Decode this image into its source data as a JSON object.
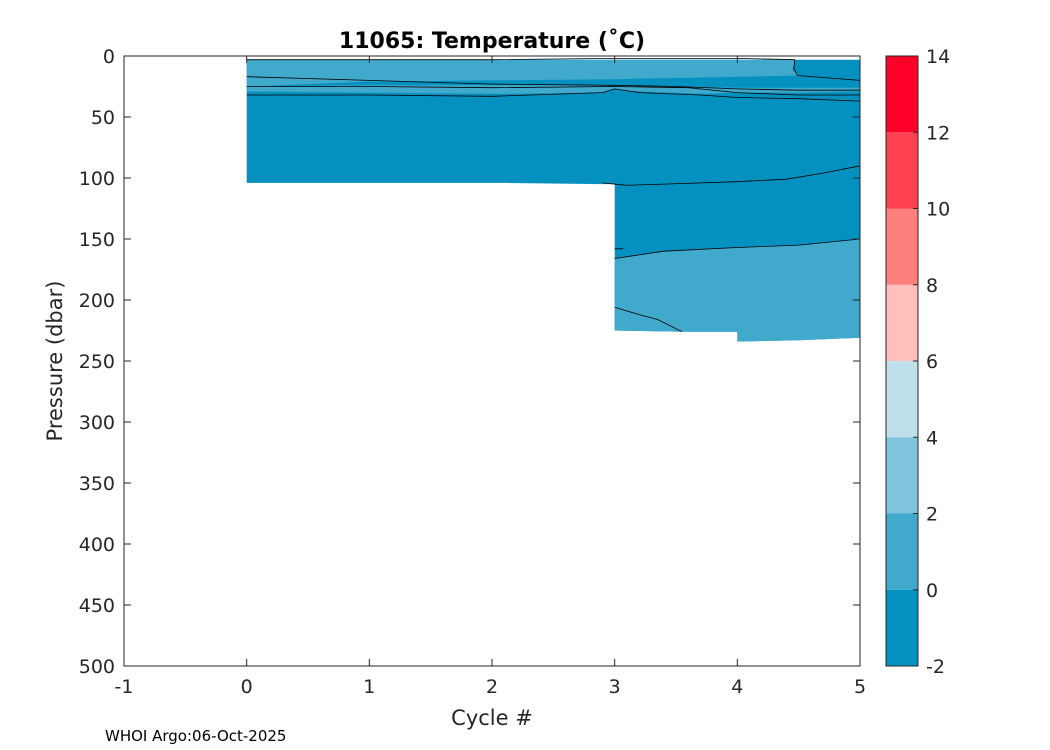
{
  "chart_data": {
    "type": "filled-contour",
    "title": "11065:  Temperature (˚C)",
    "xlabel": "Cycle #",
    "ylabel": "Pressure (dbar)",
    "xlim": [
      -1,
      5
    ],
    "ylim": [
      0,
      500
    ],
    "y_reversed": true,
    "xticks": [
      -1,
      0,
      1,
      2,
      3,
      4,
      5
    ],
    "yticks": [
      0,
      50,
      100,
      150,
      200,
      250,
      300,
      350,
      400,
      450,
      500
    ],
    "colorbar": {
      "ticks": [
        -2,
        0,
        2,
        4,
        6,
        8,
        10,
        12,
        14
      ],
      "levels": [
        {
          "from": -2,
          "to": 0,
          "color": "#0591bf"
        },
        {
          "from": 0,
          "to": 2,
          "color": "#40a9cc"
        },
        {
          "from": 2,
          "to": 4,
          "color": "#80c3dd"
        },
        {
          "from": 4,
          "to": 6,
          "color": "#bfe0ea"
        },
        {
          "from": 6,
          "to": 8,
          "color": "#ffbfbb"
        },
        {
          "from": 8,
          "to": 10,
          "color": "#fe807d"
        },
        {
          "from": 10,
          "to": 12,
          "color": "#fe4050"
        },
        {
          "from": 12,
          "to": 14,
          "color": "#ff0028"
        }
      ]
    },
    "regions": [
      {
        "name": "deep-cold-layer",
        "level": "-2 to 0",
        "polygon": [
          [
            0,
            3
          ],
          [
            0,
            104
          ],
          [
            2.1,
            104
          ],
          [
            2.9,
            105
          ],
          [
            3,
            105
          ],
          [
            3,
            225
          ],
          [
            3.55,
            226
          ],
          [
            4,
            226
          ],
          [
            4,
            234
          ],
          [
            4.5,
            233
          ],
          [
            5,
            231
          ],
          [
            5,
            3
          ]
        ]
      },
      {
        "name": "lower-warm-layer",
        "level": "0 to 2",
        "polygon": [
          [
            3,
            166
          ],
          [
            3.4,
            160
          ],
          [
            4,
            157
          ],
          [
            4.5,
            155
          ],
          [
            5,
            150
          ],
          [
            5,
            231
          ],
          [
            4.5,
            233
          ],
          [
            4,
            234
          ],
          [
            4,
            226
          ],
          [
            3.55,
            226
          ],
          [
            3,
            225
          ]
        ]
      },
      {
        "name": "surface-warm-layer",
        "level": "0 to 2",
        "polygon": [
          [
            0,
            3
          ],
          [
            0,
            25
          ],
          [
            1,
            21
          ],
          [
            2,
            20
          ],
          [
            3,
            19
          ],
          [
            3.5,
            18
          ],
          [
            4,
            17
          ],
          [
            4.5,
            16
          ],
          [
            4.45,
            12
          ],
          [
            4.47,
            3
          ]
        ]
      },
      {
        "name": "sub-surface-warm-band",
        "level": "0 to 2",
        "polygon": [
          [
            0,
            29
          ],
          [
            1,
            30
          ],
          [
            2,
            31
          ],
          [
            2.9,
            30
          ],
          [
            3,
            27
          ],
          [
            3.2,
            29
          ],
          [
            3.7,
            31
          ],
          [
            4,
            30
          ],
          [
            4.5,
            30
          ],
          [
            5,
            29
          ],
          [
            5,
            26
          ],
          [
            4.5,
            26
          ],
          [
            4,
            26
          ],
          [
            3.5,
            25
          ],
          [
            3,
            24
          ],
          [
            2,
            24
          ],
          [
            1,
            24
          ],
          [
            0,
            25
          ]
        ]
      }
    ],
    "contour_lines": [
      [
        [
          0,
          3
        ],
        [
          1,
          3
        ],
        [
          2,
          3
        ],
        [
          3,
          2
        ],
        [
          4,
          2
        ],
        [
          4.47,
          3
        ]
      ],
      [
        [
          0,
          17
        ],
        [
          1,
          20
        ],
        [
          2,
          23
        ],
        [
          3,
          24
        ],
        [
          3.5,
          25
        ],
        [
          4,
          27
        ],
        [
          4.5,
          28
        ],
        [
          5,
          28
        ]
      ],
      [
        [
          0,
          25
        ],
        [
          1,
          25
        ],
        [
          2,
          26
        ],
        [
          3,
          25
        ],
        [
          3.6,
          26
        ],
        [
          4,
          30
        ],
        [
          4.5,
          32
        ],
        [
          5,
          32
        ]
      ],
      [
        [
          0,
          32
        ],
        [
          1,
          32
        ],
        [
          2,
          33
        ],
        [
          2.9,
          30
        ],
        [
          3,
          27
        ],
        [
          3.2,
          30
        ],
        [
          3.7,
          32
        ],
        [
          4,
          34
        ],
        [
          4.5,
          35
        ],
        [
          5,
          37
        ]
      ],
      [
        [
          4.47,
          3
        ],
        [
          4.46,
          10
        ],
        [
          4.49,
          16
        ],
        [
          5,
          20
        ]
      ],
      [
        [
          2.9,
          104
        ],
        [
          3.1,
          106
        ],
        [
          3.4,
          105
        ],
        [
          4,
          103
        ],
        [
          4.4,
          101
        ],
        [
          4.7,
          96
        ],
        [
          5,
          90
        ]
      ],
      [
        [
          3,
          158
        ],
        [
          3.07,
          158
        ]
      ],
      [
        [
          3,
          166
        ],
        [
          3.4,
          160
        ],
        [
          4,
          157
        ],
        [
          4.5,
          155
        ],
        [
          5,
          150
        ]
      ],
      [
        [
          3,
          206
        ],
        [
          3.2,
          212
        ],
        [
          3.35,
          216
        ],
        [
          3.55,
          226
        ]
      ]
    ]
  },
  "footer": {
    "credit": "WHOI Argo:06-Oct-2025"
  }
}
